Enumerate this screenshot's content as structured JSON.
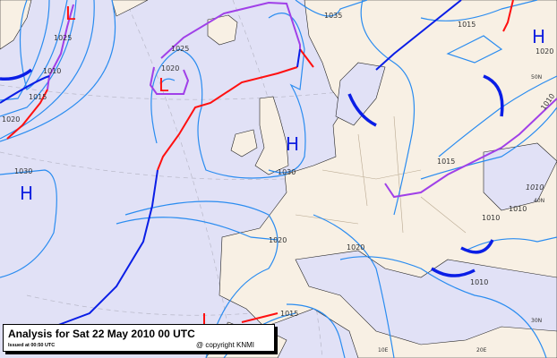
{
  "map": {
    "title": "Analysis for Sat 22 May 2010 00 UTC",
    "issued": "Issued at 00:50 UTC",
    "copyright": "@ copyright KNMI",
    "colors": {
      "sea": "#e1e1f6",
      "land": "#f8f0e4",
      "isobar": "#2a8cf0",
      "cold_front": "#0a1ee6",
      "warm_front": "#ff1010",
      "occluded_front": "#a040e8"
    },
    "isobar_labels": [
      "1025",
      "1010",
      "1015",
      "1020",
      "1030",
      "1025",
      "1020",
      "1030",
      "1035",
      "1015",
      "1020",
      "1010",
      "1015",
      "1010",
      "1010",
      "1010",
      "1020",
      "1020",
      "1010",
      "1015"
    ],
    "pressure_centres": [
      "H",
      "H",
      "H",
      "L",
      "L"
    ],
    "coordinate_labels": [
      "50N",
      "40N",
      "30N",
      "10E",
      "20E"
    ]
  }
}
